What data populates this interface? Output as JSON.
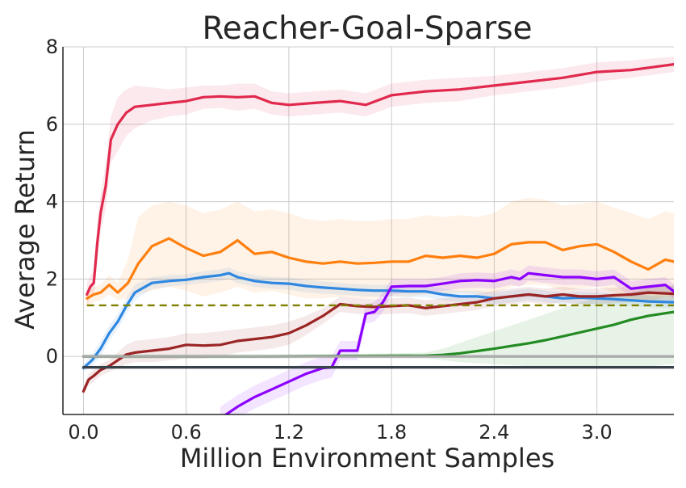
{
  "chart_data": {
    "type": "line",
    "title": "Reacher-Goal-Sparse",
    "xlabel": "Million Environment Samples",
    "ylabel": "Average Return",
    "xlim": [
      -0.12,
      3.45
    ],
    "ylim": [
      -1.5,
      8
    ],
    "xticks": [
      0.0,
      0.6,
      1.2,
      1.8,
      2.4,
      3.0
    ],
    "xtick_labels": [
      "0.0",
      "0.6",
      "1.2",
      "1.8",
      "2.4",
      "3.0"
    ],
    "yticks": [
      0,
      2,
      4,
      6,
      8
    ],
    "ytick_labels": [
      "0",
      "2",
      "4",
      "6",
      "8"
    ],
    "grid": true,
    "legend": "none",
    "series": [
      {
        "color": "#e0294d",
        "band_opacity": 0.1,
        "x": [
          0.02,
          0.04,
          0.06,
          0.08,
          0.1,
          0.13,
          0.16,
          0.2,
          0.25,
          0.3,
          0.4,
          0.5,
          0.6,
          0.7,
          0.8,
          0.9,
          1.0,
          1.1,
          1.2,
          1.35,
          1.5,
          1.65,
          1.8,
          2.0,
          2.2,
          2.4,
          2.6,
          2.8,
          3.0,
          3.2,
          3.45
        ],
        "y": [
          1.6,
          1.8,
          1.9,
          2.9,
          3.7,
          4.4,
          5.6,
          6.0,
          6.3,
          6.45,
          6.5,
          6.55,
          6.6,
          6.7,
          6.72,
          6.7,
          6.72,
          6.55,
          6.5,
          6.55,
          6.6,
          6.5,
          6.75,
          6.85,
          6.9,
          7.0,
          7.1,
          7.2,
          7.35,
          7.4,
          7.55
        ],
        "lower": [
          1.3,
          1.5,
          1.6,
          2.4,
          3.2,
          3.8,
          5.0,
          5.3,
          5.7,
          5.9,
          6.1,
          6.2,
          6.25,
          6.4,
          6.42,
          6.35,
          6.4,
          6.25,
          6.2,
          6.25,
          6.3,
          6.2,
          6.45,
          6.55,
          6.6,
          6.75,
          6.85,
          6.95,
          7.1,
          7.2,
          7.35
        ],
        "upper": [
          1.9,
          2.1,
          2.2,
          3.4,
          4.2,
          5.0,
          6.2,
          6.7,
          6.9,
          7.0,
          6.95,
          6.9,
          6.95,
          7.0,
          7.0,
          7.05,
          7.05,
          6.85,
          6.8,
          6.85,
          6.9,
          6.8,
          7.05,
          7.15,
          7.2,
          7.25,
          7.35,
          7.45,
          7.6,
          7.65,
          7.75
        ]
      },
      {
        "color": "#ff7f0e",
        "band_opacity": 0.1,
        "x": [
          0.02,
          0.06,
          0.1,
          0.15,
          0.2,
          0.26,
          0.32,
          0.4,
          0.5,
          0.6,
          0.7,
          0.8,
          0.9,
          1.0,
          1.1,
          1.2,
          1.3,
          1.4,
          1.5,
          1.6,
          1.7,
          1.8,
          1.9,
          2.0,
          2.1,
          2.2,
          2.3,
          2.4,
          2.5,
          2.6,
          2.7,
          2.8,
          2.9,
          3.0,
          3.1,
          3.2,
          3.3,
          3.4,
          3.45
        ],
        "y": [
          1.5,
          1.6,
          1.65,
          1.85,
          1.65,
          1.9,
          2.4,
          2.85,
          3.05,
          2.8,
          2.6,
          2.7,
          3.0,
          2.65,
          2.7,
          2.55,
          2.45,
          2.4,
          2.45,
          2.4,
          2.42,
          2.45,
          2.45,
          2.6,
          2.55,
          2.6,
          2.55,
          2.65,
          2.9,
          2.95,
          2.95,
          2.75,
          2.85,
          2.9,
          2.7,
          2.45,
          2.25,
          2.5,
          2.45
        ],
        "lower": [
          1.3,
          1.4,
          1.45,
          1.6,
          1.45,
          1.5,
          1.6,
          1.7,
          1.8,
          1.7,
          1.55,
          1.65,
          1.8,
          1.65,
          1.7,
          1.6,
          1.5,
          1.5,
          1.55,
          1.5,
          1.5,
          1.55,
          1.55,
          1.6,
          1.6,
          1.65,
          1.6,
          1.65,
          1.8,
          1.85,
          1.85,
          1.7,
          1.75,
          1.8,
          1.65,
          1.5,
          1.4,
          1.55,
          1.5
        ],
        "upper": [
          1.7,
          1.8,
          1.85,
          2.1,
          1.9,
          2.5,
          3.6,
          3.9,
          4.0,
          3.9,
          3.7,
          3.8,
          4.0,
          3.75,
          3.8,
          3.7,
          3.55,
          3.5,
          3.55,
          3.5,
          3.5,
          3.55,
          3.55,
          3.65,
          3.6,
          3.65,
          3.6,
          3.7,
          4.0,
          4.1,
          4.05,
          3.9,
          3.95,
          4.0,
          3.85,
          3.7,
          3.55,
          3.75,
          3.7
        ]
      },
      {
        "color": "#2e87e0",
        "band_opacity": 0.1,
        "x": [
          0.0,
          0.05,
          0.1,
          0.15,
          0.2,
          0.25,
          0.3,
          0.4,
          0.5,
          0.6,
          0.7,
          0.8,
          0.85,
          0.9,
          1.0,
          1.1,
          1.2,
          1.3,
          1.4,
          1.5,
          1.6,
          1.7,
          1.8,
          1.9,
          2.0,
          2.1,
          2.2,
          2.3,
          2.4,
          2.5,
          2.6,
          2.7,
          2.8,
          2.9,
          3.0,
          3.1,
          3.2,
          3.3,
          3.45
        ],
        "y": [
          -0.3,
          -0.1,
          0.2,
          0.6,
          0.9,
          1.3,
          1.65,
          1.9,
          1.95,
          1.98,
          2.05,
          2.1,
          2.15,
          2.05,
          1.95,
          1.9,
          1.88,
          1.82,
          1.78,
          1.75,
          1.72,
          1.7,
          1.7,
          1.68,
          1.68,
          1.6,
          1.55,
          1.55,
          1.5,
          1.55,
          1.6,
          1.55,
          1.5,
          1.52,
          1.5,
          1.48,
          1.45,
          1.42,
          1.4
        ],
        "lower": [
          -0.4,
          -0.25,
          0.0,
          0.4,
          0.7,
          1.1,
          1.45,
          1.75,
          1.8,
          1.85,
          1.9,
          1.95,
          2.0,
          1.9,
          1.8,
          1.75,
          1.72,
          1.66,
          1.62,
          1.6,
          1.57,
          1.55,
          1.55,
          1.53,
          1.53,
          1.45,
          1.4,
          1.4,
          1.35,
          1.4,
          1.45,
          1.4,
          1.35,
          1.37,
          1.35,
          1.33,
          1.3,
          1.27,
          1.25
        ],
        "upper": [
          -0.2,
          0.05,
          0.4,
          0.8,
          1.1,
          1.5,
          1.85,
          2.05,
          2.1,
          2.12,
          2.2,
          2.25,
          2.3,
          2.2,
          2.1,
          2.05,
          2.04,
          1.98,
          1.94,
          1.9,
          1.87,
          1.85,
          1.85,
          1.83,
          1.83,
          1.75,
          1.7,
          1.7,
          1.65,
          1.7,
          1.75,
          1.7,
          1.65,
          1.67,
          1.65,
          1.63,
          1.6,
          1.57,
          1.55
        ]
      },
      {
        "color": "#9b2424",
        "band_opacity": 0.1,
        "x": [
          0.0,
          0.03,
          0.06,
          0.1,
          0.15,
          0.2,
          0.25,
          0.3,
          0.4,
          0.5,
          0.6,
          0.7,
          0.8,
          0.9,
          1.0,
          1.1,
          1.2,
          1.3,
          1.4,
          1.45,
          1.5,
          1.6,
          1.7,
          1.8,
          1.9,
          2.0,
          2.1,
          2.2,
          2.3,
          2.4,
          2.5,
          2.6,
          2.7,
          2.8,
          2.9,
          3.0,
          3.1,
          3.2,
          3.3,
          3.45
        ],
        "y": [
          -0.9,
          -0.6,
          -0.5,
          -0.35,
          -0.25,
          -0.1,
          0.05,
          0.1,
          0.15,
          0.2,
          0.3,
          0.28,
          0.3,
          0.4,
          0.45,
          0.5,
          0.6,
          0.8,
          1.05,
          1.2,
          1.35,
          1.3,
          1.28,
          1.3,
          1.32,
          1.25,
          1.3,
          1.35,
          1.4,
          1.5,
          1.55,
          1.6,
          1.55,
          1.6,
          1.55,
          1.55,
          1.58,
          1.6,
          1.65,
          1.62
        ],
        "lower": [
          -1.0,
          -0.75,
          -0.65,
          -0.5,
          -0.4,
          -0.3,
          -0.2,
          -0.15,
          -0.15,
          -0.1,
          -0.05,
          -0.05,
          0.0,
          0.1,
          0.15,
          0.2,
          0.3,
          0.55,
          0.85,
          1.0,
          1.15,
          1.1,
          1.08,
          1.1,
          1.12,
          1.05,
          1.1,
          1.15,
          1.2,
          1.3,
          1.35,
          1.4,
          1.35,
          1.4,
          1.35,
          1.35,
          1.38,
          1.4,
          1.45,
          1.42
        ],
        "upper": [
          -0.8,
          -0.45,
          -0.35,
          -0.2,
          -0.1,
          0.1,
          0.3,
          0.4,
          0.45,
          0.5,
          0.6,
          0.6,
          0.65,
          0.7,
          0.75,
          0.8,
          0.9,
          1.05,
          1.25,
          1.4,
          1.55,
          1.5,
          1.48,
          1.5,
          1.52,
          1.45,
          1.5,
          1.55,
          1.6,
          1.7,
          1.75,
          1.8,
          1.75,
          1.8,
          1.75,
          1.75,
          1.78,
          1.8,
          1.85,
          1.82
        ]
      },
      {
        "color": "#8b00ff",
        "band_opacity": 0.1,
        "x": [
          0.8,
          0.9,
          1.0,
          1.1,
          1.2,
          1.3,
          1.4,
          1.45,
          1.5,
          1.55,
          1.6,
          1.65,
          1.7,
          1.75,
          1.8,
          1.9,
          2.0,
          2.1,
          2.2,
          2.3,
          2.4,
          2.5,
          2.55,
          2.6,
          2.7,
          2.8,
          2.9,
          3.0,
          3.1,
          3.2,
          3.3,
          3.4,
          3.45
        ],
        "y": [
          -1.6,
          -1.3,
          -1.05,
          -0.85,
          -0.65,
          -0.45,
          -0.3,
          -0.28,
          0.15,
          0.15,
          0.15,
          1.1,
          1.15,
          1.4,
          1.8,
          1.82,
          1.82,
          1.88,
          1.95,
          1.97,
          1.95,
          2.05,
          2.0,
          2.15,
          2.1,
          2.05,
          2.05,
          2.0,
          2.05,
          1.75,
          1.8,
          1.85,
          1.68
        ],
        "lower": [
          -1.9,
          -1.6,
          -1.35,
          -1.15,
          -0.95,
          -0.75,
          -0.6,
          -0.55,
          -0.1,
          -0.1,
          -0.1,
          0.85,
          0.9,
          1.15,
          1.6,
          1.65,
          1.65,
          1.7,
          1.75,
          1.78,
          1.75,
          1.85,
          1.8,
          1.95,
          1.9,
          1.85,
          1.85,
          1.8,
          1.85,
          1.55,
          1.6,
          1.65,
          1.5
        ],
        "upper": [
          -1.3,
          -1.0,
          -0.75,
          -0.55,
          -0.35,
          -0.15,
          0.0,
          0.0,
          0.4,
          0.4,
          0.4,
          1.35,
          1.4,
          1.65,
          2.0,
          2.0,
          2.0,
          2.05,
          2.15,
          2.17,
          2.15,
          2.25,
          2.2,
          2.35,
          2.3,
          2.25,
          2.25,
          2.2,
          2.25,
          1.95,
          2.0,
          2.05,
          1.88
        ]
      },
      {
        "color": "#228b22",
        "band_opacity": 0.1,
        "x": [
          0.0,
          0.5,
          1.0,
          1.5,
          2.0,
          2.1,
          2.2,
          2.3,
          2.4,
          2.5,
          2.6,
          2.7,
          2.8,
          2.9,
          3.0,
          3.1,
          3.2,
          3.3,
          3.45
        ],
        "y": [
          0.0,
          0.0,
          0.0,
          0.01,
          0.02,
          0.04,
          0.08,
          0.14,
          0.2,
          0.27,
          0.34,
          0.42,
          0.52,
          0.62,
          0.72,
          0.82,
          0.95,
          1.05,
          1.15
        ],
        "lower": [
          -0.05,
          -0.05,
          -0.05,
          -0.04,
          -0.05,
          -0.1,
          -0.15,
          -0.18,
          -0.2,
          -0.22,
          -0.25,
          -0.27,
          -0.28,
          -0.3,
          -0.3,
          -0.3,
          -0.28,
          -0.25,
          -0.2
        ],
        "upper": [
          0.05,
          0.05,
          0.05,
          0.06,
          0.1,
          0.2,
          0.35,
          0.5,
          0.65,
          0.8,
          0.95,
          1.1,
          1.25,
          1.4,
          1.5,
          1.55,
          1.65,
          1.75,
          1.85
        ]
      },
      {
        "color": "#a9a9a9",
        "band_opacity": 0.1,
        "x": [
          0.0,
          3.45
        ],
        "y": [
          0.0,
          0.0
        ],
        "lower": [
          -0.05,
          -0.05
        ],
        "upper": [
          0.05,
          0.05
        ]
      },
      {
        "color": "#36414a",
        "band_opacity": 0.1,
        "x": [
          0.0,
          3.45
        ],
        "y": [
          -0.28,
          -0.28
        ],
        "lower": [
          -0.32,
          -0.32
        ],
        "upper": [
          -0.24,
          -0.24
        ]
      },
      {
        "color": "#808000",
        "style": "dashed",
        "x": [
          0.02,
          3.45
        ],
        "y": [
          1.32,
          1.32
        ]
      }
    ]
  }
}
